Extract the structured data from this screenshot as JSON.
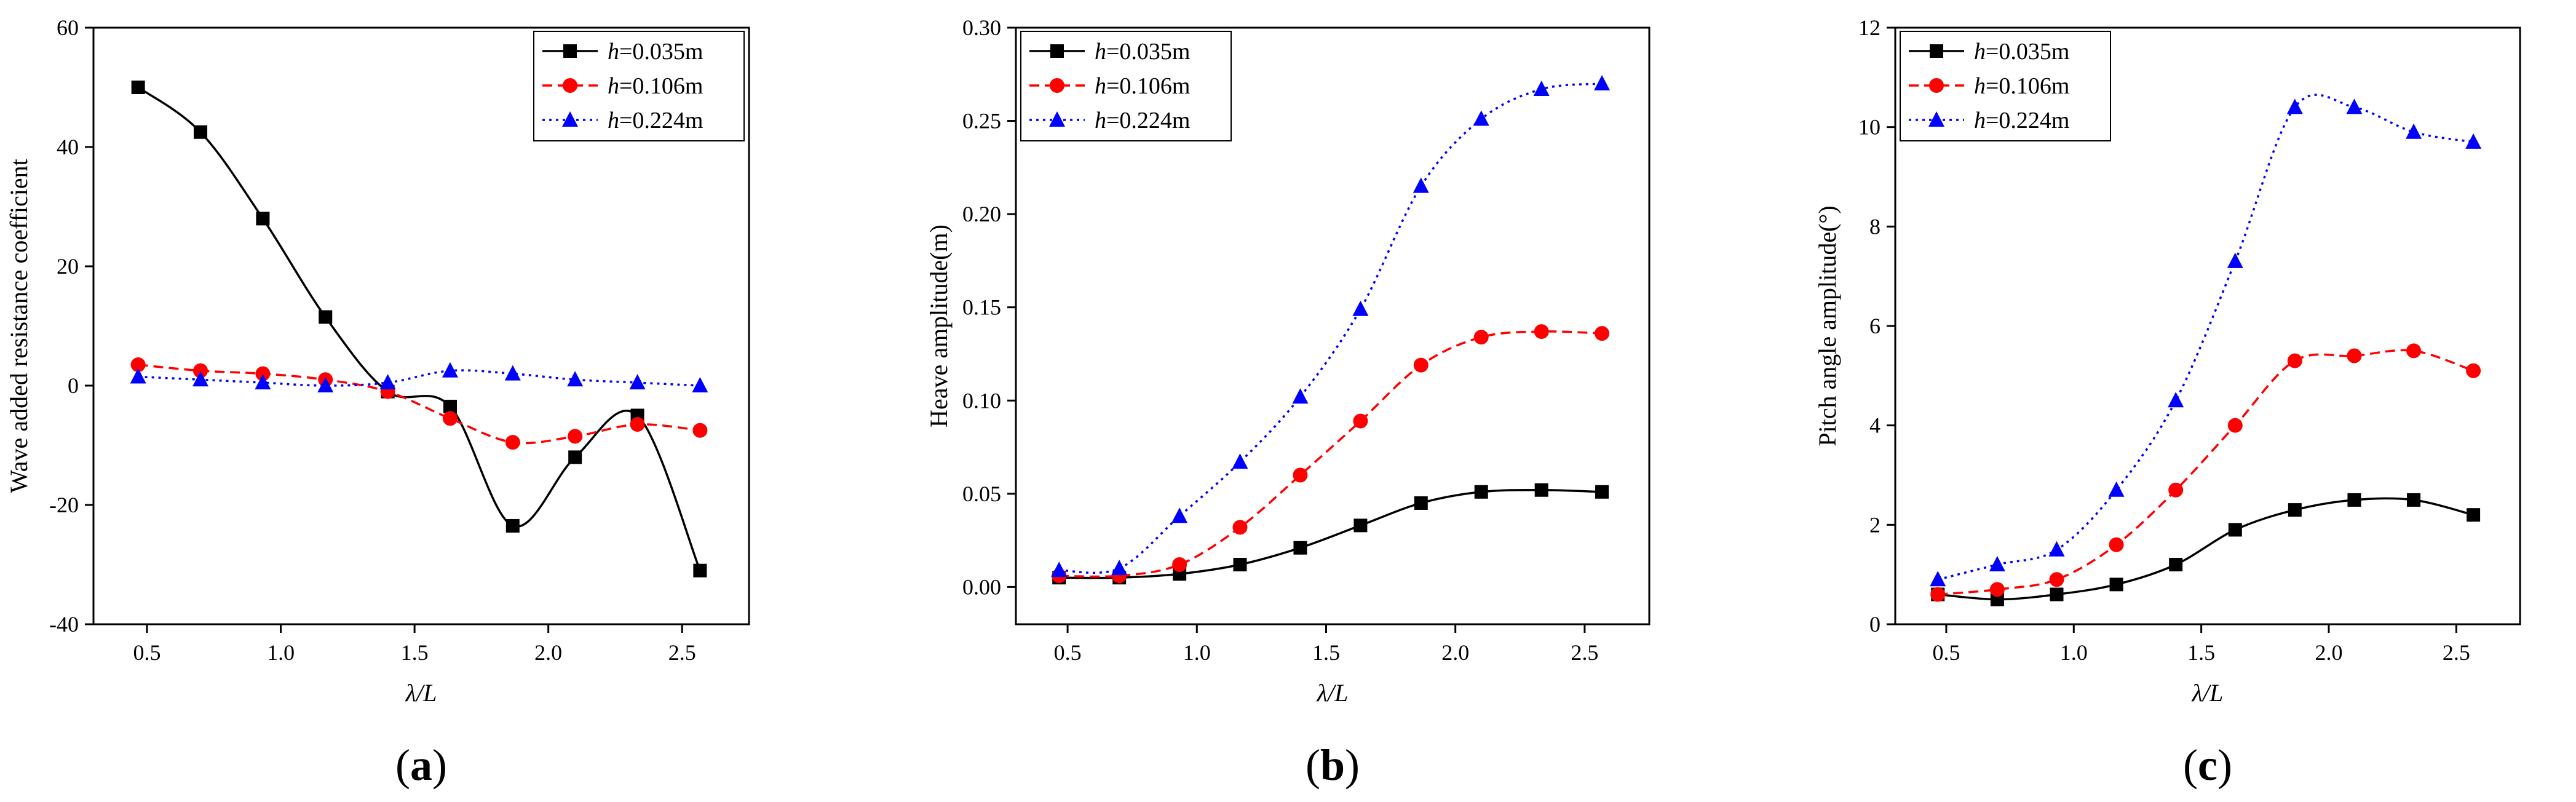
{
  "chart_data": [
    {
      "type": "line",
      "panel_label": "a",
      "xlabel": "λ/L",
      "ylabel": "Wave added resistance coefficient",
      "xlim": [
        0.3,
        2.75
      ],
      "ylim": [
        -40,
        60
      ],
      "xticks": [
        0.5,
        1.0,
        1.5,
        2.0,
        2.5
      ],
      "xtick_labels": [
        "0.5",
        "1.0",
        "1.5",
        "2.0",
        "2.5"
      ],
      "yticks": [
        -40,
        -20,
        0,
        20,
        40,
        60
      ],
      "ytick_labels": [
        "-40",
        "-20",
        "0",
        "20",
        "40",
        "60"
      ],
      "legend_position": "top-right",
      "x": [
        0.467,
        0.7,
        0.933,
        1.167,
        1.4,
        1.633,
        1.867,
        2.1,
        2.333,
        2.567
      ],
      "series": [
        {
          "name": "h=0.035m",
          "name_italic": "h",
          "name_rest": "=0.035m",
          "color": "#000000",
          "dash": "solid",
          "marker": "square",
          "values": [
            50.0,
            42.5,
            28.0,
            11.5,
            -1.0,
            -3.5,
            -23.5,
            -12.0,
            -5.0,
            -31.0
          ]
        },
        {
          "name": "h=0.106m",
          "name_italic": "h",
          "name_rest": "=0.106m",
          "color": "#ff0000",
          "dash": "dashed",
          "marker": "circle",
          "values": [
            3.5,
            2.5,
            2.0,
            1.0,
            -1.0,
            -5.5,
            -9.5,
            -8.5,
            -6.5,
            -7.5
          ]
        },
        {
          "name": "h=0.224m",
          "name_italic": "h",
          "name_rest": "=0.224m",
          "color": "#0000ff",
          "dash": "dotted",
          "marker": "triangle",
          "values": [
            1.5,
            1.0,
            0.5,
            0.0,
            0.5,
            2.5,
            2.0,
            1.0,
            0.5,
            0.0
          ]
        }
      ]
    },
    {
      "type": "line",
      "panel_label": "b",
      "xlabel": "λ/L",
      "ylabel": "Heave amplitude(m)",
      "xlim": [
        0.3,
        2.75
      ],
      "ylim": [
        -0.02,
        0.3
      ],
      "xticks": [
        0.5,
        1.0,
        1.5,
        2.0,
        2.5
      ],
      "xtick_labels": [
        "0.5",
        "1.0",
        "1.5",
        "2.0",
        "2.5"
      ],
      "yticks": [
        0.0,
        0.05,
        0.1,
        0.15,
        0.2,
        0.25,
        0.3
      ],
      "ytick_labels": [
        "0.00",
        "0.05",
        "0.10",
        "0.15",
        "0.20",
        "0.25",
        "0.30"
      ],
      "legend_position": "top-left",
      "x": [
        0.467,
        0.7,
        0.933,
        1.167,
        1.4,
        1.633,
        1.867,
        2.1,
        2.333,
        2.567
      ],
      "series": [
        {
          "name": "h=0.035m",
          "name_italic": "h",
          "name_rest": "=0.035m",
          "color": "#000000",
          "dash": "solid",
          "marker": "square",
          "values": [
            0.005,
            0.005,
            0.007,
            0.012,
            0.021,
            0.033,
            0.045,
            0.051,
            0.052,
            0.051
          ]
        },
        {
          "name": "h=0.106m",
          "name_italic": "h",
          "name_rest": "=0.106m",
          "color": "#ff0000",
          "dash": "dashed",
          "marker": "circle",
          "values": [
            0.006,
            0.006,
            0.012,
            0.032,
            0.06,
            0.089,
            0.119,
            0.134,
            0.137,
            0.136
          ]
        },
        {
          "name": "h=0.224m",
          "name_italic": "h",
          "name_rest": "=0.224m",
          "color": "#0000ff",
          "dash": "dotted",
          "marker": "triangle",
          "values": [
            0.009,
            0.01,
            0.038,
            0.067,
            0.102,
            0.149,
            0.215,
            0.251,
            0.267,
            0.27
          ]
        }
      ]
    },
    {
      "type": "line",
      "panel_label": "c",
      "xlabel": "λ/L",
      "ylabel": "Pitch angle amplitude(°)",
      "xlim": [
        0.3,
        2.75
      ],
      "ylim": [
        0,
        12
      ],
      "xticks": [
        0.5,
        1.0,
        1.5,
        2.0,
        2.5
      ],
      "xtick_labels": [
        "0.5",
        "1.0",
        "1.5",
        "2.0",
        "2.5"
      ],
      "yticks": [
        0,
        2,
        4,
        6,
        8,
        10,
        12
      ],
      "ytick_labels": [
        "0",
        "2",
        "4",
        "6",
        "8",
        "10",
        "12"
      ],
      "legend_position": "top-left",
      "x": [
        0.467,
        0.7,
        0.933,
        1.167,
        1.4,
        1.633,
        1.867,
        2.1,
        2.333,
        2.567
      ],
      "series": [
        {
          "name": "h=0.035m",
          "name_italic": "h",
          "name_rest": "=0.035m",
          "color": "#000000",
          "dash": "solid",
          "marker": "square",
          "values": [
            0.6,
            0.5,
            0.6,
            0.8,
            1.2,
            1.9,
            2.3,
            2.5,
            2.5,
            2.2
          ]
        },
        {
          "name": "h=0.106m",
          "name_italic": "h",
          "name_rest": "=0.106m",
          "color": "#ff0000",
          "dash": "dashed",
          "marker": "circle",
          "values": [
            0.6,
            0.7,
            0.9,
            1.6,
            2.7,
            4.0,
            5.3,
            5.4,
            5.5,
            5.1
          ]
        },
        {
          "name": "h=0.224m",
          "name_italic": "h",
          "name_rest": "=0.224m",
          "color": "#0000ff",
          "dash": "dotted",
          "marker": "triangle",
          "values": [
            0.9,
            1.2,
            1.5,
            2.7,
            4.5,
            7.3,
            10.4,
            10.4,
            9.9,
            9.7
          ]
        }
      ]
    }
  ]
}
